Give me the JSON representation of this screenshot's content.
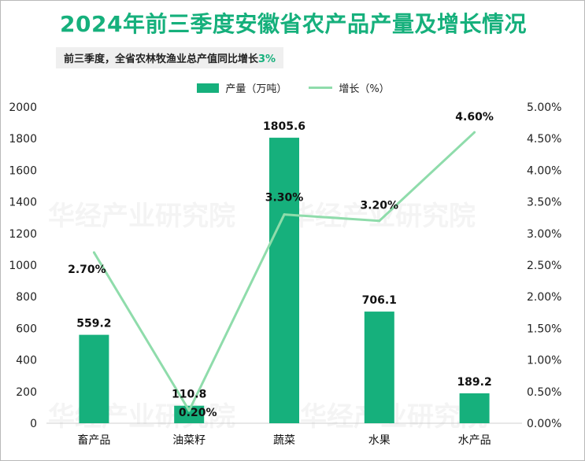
{
  "title": "2024年前三季度安徽省农产品产量及增长情况",
  "subtitle": {
    "text": "前三季度，全省农林牧渔业总产值同比增长",
    "highlight": "3%"
  },
  "watermark": "华经产业研究院",
  "colors": {
    "bar": "#16b07c",
    "line": "#8fdcab",
    "title": "#16b07c"
  },
  "chart_data": {
    "type": "bar+line",
    "categories": [
      "畜产品",
      "油菜籽",
      "蔬菜",
      "水果",
      "水产品"
    ],
    "series": [
      {
        "name": "产量（万吨）",
        "type": "bar",
        "axis": "left",
        "values": [
          559.2,
          110.8,
          1805.6,
          706.1,
          189.2
        ],
        "labels": [
          "559.2",
          "110.8",
          "1805.6",
          "706.1",
          "189.2"
        ]
      },
      {
        "name": "增长（%）",
        "type": "line",
        "axis": "right",
        "values": [
          2.7,
          0.2,
          3.3,
          3.2,
          4.6
        ],
        "labels": [
          "2.70%",
          "0.20%",
          "3.30%",
          "3.20%",
          "4.60%"
        ]
      }
    ],
    "y_left": {
      "min": 0,
      "max": 2000,
      "step": 200,
      "ticks": [
        "0",
        "200",
        "400",
        "600",
        "800",
        "1000",
        "1200",
        "1400",
        "1600",
        "1800",
        "2000"
      ]
    },
    "y_right": {
      "min": 0,
      "max": 5,
      "step": 0.5,
      "ticks": [
        "0.00%",
        "0.50%",
        "1.00%",
        "1.50%",
        "2.00%",
        "2.50%",
        "3.00%",
        "3.50%",
        "4.00%",
        "4.50%",
        "5.00%"
      ]
    },
    "legend_position": "top-center",
    "grid": false
  }
}
